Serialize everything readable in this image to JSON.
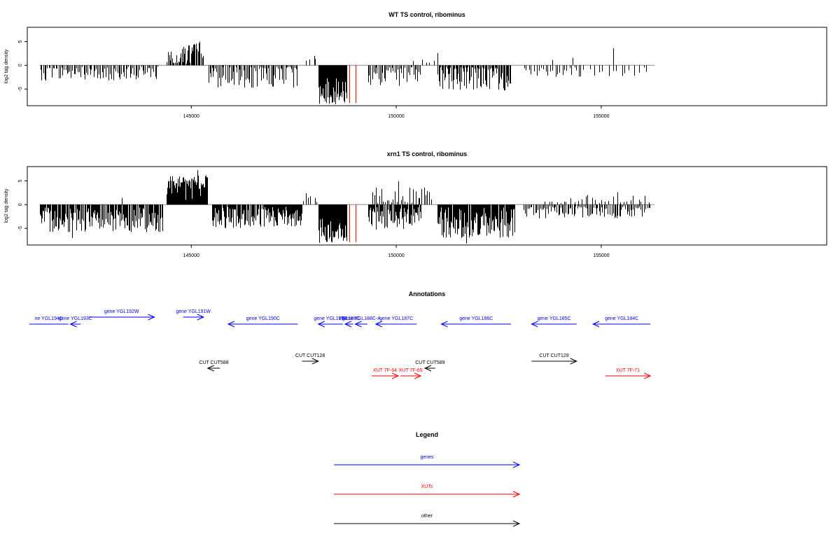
{
  "colors": {
    "genes": "#0000ff",
    "xuts": "#ff0000",
    "other": "#000000",
    "marker": "#ff0000"
  },
  "chart_data": [
    {
      "type": "bar",
      "title": "WT TS control, ribominus",
      "ylabel": "log2 tag density",
      "xlim": [
        141000,
        160500
      ],
      "ylim": [
        -8.5,
        8
      ],
      "yticks": [
        -5,
        0,
        5
      ],
      "xticks": [
        145000,
        150000,
        155000
      ],
      "xtick_labels": [
        "145000",
        "150000",
        "155000"
      ],
      "ytick_labels": [
        "-5",
        "0",
        "5"
      ],
      "markers": [
        148850,
        149000
      ],
      "segments": [
        {
          "start": 141300,
          "end": 144200,
          "sign": -1,
          "mean": 1.6,
          "amp": 1.6,
          "n": 85
        },
        {
          "start": 144400,
          "end": 145300,
          "sign": 1,
          "mean": 2.4,
          "amp": 2.5,
          "n": 45
        },
        {
          "start": 145400,
          "end": 147600,
          "sign": -1,
          "mean": 2.3,
          "amp": 2.4,
          "n": 75
        },
        {
          "start": 147700,
          "end": 148050,
          "sign": 1,
          "mean": 1.0,
          "amp": 1.0,
          "n": 3
        },
        {
          "start": 148100,
          "end": 148800,
          "sign": -1,
          "mean": 5.4,
          "amp": 2.8,
          "n": 70
        },
        {
          "start": 149300,
          "end": 150600,
          "sign": -1,
          "mean": 2.1,
          "amp": 2.4,
          "n": 40
        },
        {
          "start": 150600,
          "end": 151000,
          "sign": 1,
          "mean": 0.8,
          "amp": 1.2,
          "n": 4
        },
        {
          "start": 151000,
          "end": 152800,
          "sign": -1,
          "mean": 2.5,
          "amp": 3.0,
          "n": 80
        },
        {
          "start": 153100,
          "end": 154600,
          "sign": -1,
          "mean": 1.2,
          "amp": 1.2,
          "n": 26
        },
        {
          "start": 154700,
          "end": 156200,
          "sign": -1,
          "mean": 1.3,
          "amp": 1.2,
          "n": 14
        }
      ],
      "spikes": [
        {
          "x": 145200,
          "y": 5
        },
        {
          "x": 148000,
          "y": 2
        },
        {
          "x": 151000,
          "y": 2.6
        },
        {
          "x": 153800,
          "y": 1.1
        },
        {
          "x": 154300,
          "y": 1.6
        },
        {
          "x": 155300,
          "y": 3.6
        },
        {
          "x": 150400,
          "y": 0.9
        },
        {
          "x": 147250,
          "y": -3.9
        }
      ]
    },
    {
      "type": "bar",
      "title": "xrn1 TS control, ribominus",
      "ylabel": "log2 tag density",
      "xlim": [
        141000,
        160500
      ],
      "ylim": [
        -8.5,
        8
      ],
      "yticks": [
        -5,
        0,
        5
      ],
      "xticks": [
        145000,
        150000,
        155000
      ],
      "xtick_labels": [
        "145000",
        "150000",
        "155000"
      ],
      "ytick_labels": [
        "-5",
        "0",
        "5"
      ],
      "markers": [
        148850,
        149000
      ],
      "segments": [
        {
          "start": 141300,
          "end": 144300,
          "sign": -1,
          "mean": 3.2,
          "amp": 2.6,
          "n": 160
        },
        {
          "start": 144400,
          "end": 145400,
          "sign": 1,
          "mean": 3.4,
          "amp": 2.8,
          "n": 110
        },
        {
          "start": 145500,
          "end": 147700,
          "sign": -1,
          "mean": 2.7,
          "amp": 2.3,
          "n": 130
        },
        {
          "start": 147700,
          "end": 148100,
          "sign": 1,
          "mean": 0.9,
          "amp": 1.2,
          "n": 6
        },
        {
          "start": 148100,
          "end": 148800,
          "sign": -1,
          "mean": 5.5,
          "amp": 2.6,
          "n": 80
        },
        {
          "start": 149300,
          "end": 150600,
          "sign": -1,
          "mean": 3.0,
          "amp": 2.6,
          "n": 70
        },
        {
          "start": 149400,
          "end": 150900,
          "sign": 1,
          "mean": 1.6,
          "amp": 2.0,
          "n": 30
        },
        {
          "start": 151000,
          "end": 152900,
          "sign": -1,
          "mean": 3.7,
          "amp": 3.3,
          "n": 150
        },
        {
          "start": 153100,
          "end": 156200,
          "sign": -1,
          "mean": 1.4,
          "amp": 1.5,
          "n": 100
        },
        {
          "start": 153600,
          "end": 156200,
          "sign": 1,
          "mean": 0.9,
          "amp": 1.2,
          "n": 30
        }
      ],
      "spikes": [
        {
          "x": 145150,
          "y": 7.2
        },
        {
          "x": 143300,
          "y": 1.4
        },
        {
          "x": 147800,
          "y": 2.4
        },
        {
          "x": 150050,
          "y": 4.9
        },
        {
          "x": 149500,
          "y": 3.6
        },
        {
          "x": 150800,
          "y": 2.6
        },
        {
          "x": 155400,
          "y": 2.6
        },
        {
          "x": 142100,
          "y": -7.0
        },
        {
          "x": 151700,
          "y": -8.2
        }
      ]
    }
  ],
  "annotations": {
    "title": "Annotations",
    "xlim": [
      141000,
      160500
    ],
    "genes": [
      {
        "label": "ne YGL194C",
        "start": 141050,
        "end": 142000,
        "dir": "none"
      },
      {
        "label": "gene YGL193C",
        "start": 142050,
        "end": 142300,
        "dir": "left"
      },
      {
        "label": "gene YGL192W",
        "start": 142500,
        "end": 144100,
        "dir": "right"
      },
      {
        "label": "gene YGL191W",
        "start": 144800,
        "end": 145300,
        "dir": "right"
      },
      {
        "label": "gene YGL190C",
        "start": 145900,
        "end": 147600,
        "dir": "left"
      },
      {
        "label": "gene YGL189C",
        "start": 148100,
        "end": 148700,
        "dir": "left"
      },
      {
        "label": "YGL188C",
        "start": 148750,
        "end": 148950,
        "dir": "left"
      },
      {
        "label": "gene YGL188C-A",
        "start": 149000,
        "end": 149300,
        "dir": "left"
      },
      {
        "label": "gene YGL187C",
        "start": 149500,
        "end": 150500,
        "dir": "left"
      },
      {
        "label": "gene YGL186C",
        "start": 151100,
        "end": 152800,
        "dir": "left"
      },
      {
        "label": "gene YGL185C",
        "start": 153300,
        "end": 154400,
        "dir": "left"
      },
      {
        "label": "gene YGL184C",
        "start": 154800,
        "end": 156200,
        "dir": "left"
      }
    ],
    "others": [
      {
        "label": "CUT CUT588",
        "start": 145400,
        "end": 145700,
        "dir": "left"
      },
      {
        "label": "CUT CUT128",
        "start": 147700,
        "end": 148100,
        "dir": "right"
      },
      {
        "label": "CUT CUT589",
        "start": 150700,
        "end": 150950,
        "dir": "left"
      },
      {
        "label": "CUT CUT129",
        "start": 153300,
        "end": 154400,
        "dir": "right"
      }
    ],
    "xuts": [
      {
        "label": "XUT 7F-64",
        "start": 149400,
        "end": 150050,
        "dir": "right"
      },
      {
        "label": "XUT 7F-65",
        "start": 150100,
        "end": 150600,
        "dir": "right"
      },
      {
        "label": "XUT 7F-71",
        "start": 155100,
        "end": 156200,
        "dir": "right"
      }
    ]
  },
  "legend": {
    "title": "Legend",
    "items": [
      {
        "label": "genes",
        "color": "#0000ff"
      },
      {
        "label": "XUTs",
        "color": "#ff0000"
      },
      {
        "label": "other",
        "color": "#000000"
      }
    ]
  }
}
